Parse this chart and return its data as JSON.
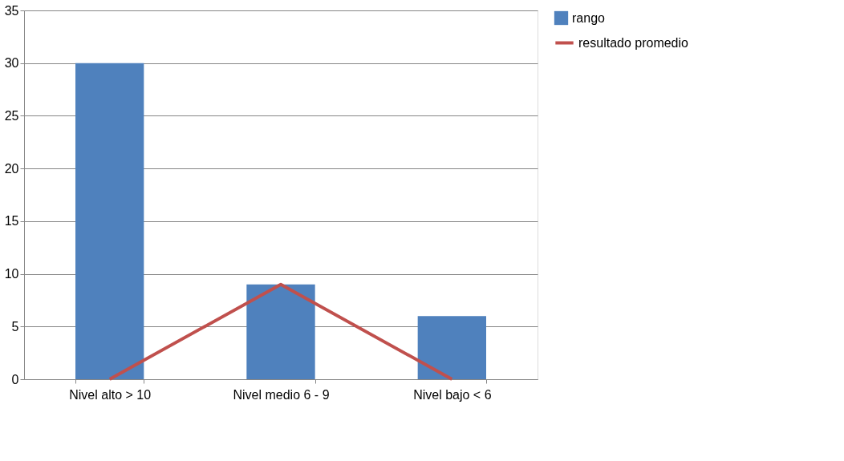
{
  "chart_data": {
    "type": "bar",
    "categories": [
      "Nivel alto > 10",
      "Nivel medio 6 - 9",
      "Nivel bajo < 6"
    ],
    "series": [
      {
        "name": "rango",
        "color": "#4f81bd",
        "values": [
          30,
          9,
          6
        ]
      },
      {
        "name": "resultado promedio",
        "type": "line",
        "color": "#c0504d",
        "values": [
          0,
          9,
          0
        ]
      }
    ],
    "ylim": [
      0,
      35
    ],
    "yticks": [
      0,
      5,
      10,
      15,
      20,
      25,
      30,
      35
    ],
    "grid": "y",
    "legend": "right",
    "marker": "none",
    "line_style": "solid"
  }
}
